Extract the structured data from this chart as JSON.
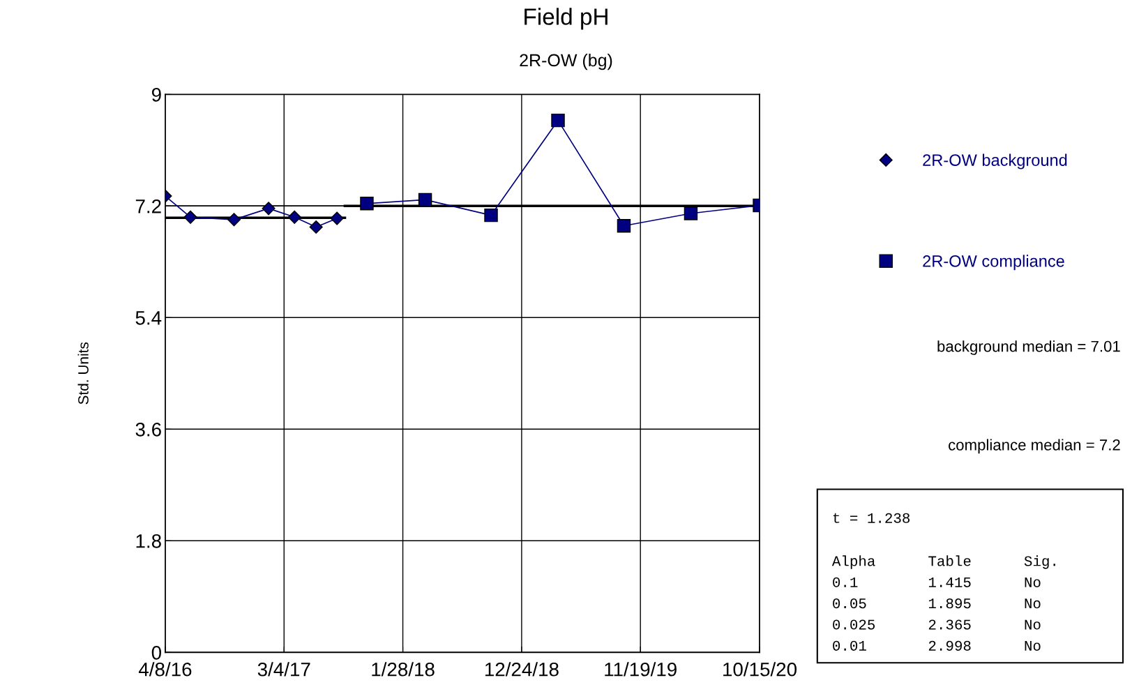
{
  "chart_data": {
    "type": "line",
    "title": "Field pH",
    "subtitle": "2R-OW (bg)",
    "ylabel": "Std. Units",
    "series": [
      {
        "name": "2R-OW background",
        "color": "#000080",
        "marker": "diamond",
        "x": [
          "2016-04-08",
          "2016-06-17",
          "2016-10-16",
          "2017-01-20",
          "2017-04-02",
          "2017-06-01",
          "2017-07-29"
        ],
        "values": [
          7.36,
          7.02,
          6.98,
          7.16,
          7.02,
          6.86,
          7.0
        ]
      },
      {
        "name": "2R-OW compliance",
        "color": "#000080",
        "marker": "square",
        "x": [
          "2017-10-20",
          "2018-03-31",
          "2018-09-30",
          "2019-04-04",
          "2019-10-04",
          "2020-04-07",
          "2020-10-15"
        ],
        "values": [
          7.24,
          7.3,
          7.05,
          8.58,
          6.88,
          7.08,
          7.21
        ]
      },
      {
        "color": "#000000",
        "marker": "none",
        "x": [
          "2016-04-08",
          "2017-08-20"
        ],
        "values": [
          7.01,
          7.01
        ]
      },
      {
        "color": "#000000",
        "marker": "none",
        "x": [
          "2017-08-20",
          "2020-10-15"
        ],
        "values": [
          7.2,
          7.2
        ]
      }
    ],
    "ref_lines": [
      {
        "axis": "y",
        "value": 7.2,
        "color": "#000000"
      }
    ],
    "xlim": [
      "2016-04-08",
      "2020-10-15"
    ],
    "xticks": [
      {
        "value": "2016-04-08",
        "label": "4/8/16"
      },
      {
        "value": "2017-03-04",
        "label": "3/4/17"
      },
      {
        "value": "2018-01-28",
        "label": "1/28/18"
      },
      {
        "value": "2018-12-24",
        "label": "12/24/18"
      },
      {
        "value": "2019-11-19",
        "label": "11/19/19"
      },
      {
        "value": "2020-10-15",
        "label": "10/15/20"
      }
    ],
    "ylim": [
      0,
      9
    ],
    "yticks": [
      0,
      1.8,
      3.6,
      5.4,
      7.2,
      9
    ],
    "grid": true,
    "legend": "right",
    "annotations": [
      "background median = 7.01",
      "compliance median = 7.2",
      "t = 1.238",
      "Alpha      Table      Sig.",
      "0.1        1.415      No",
      "0.05       1.895      No",
      "0.025      2.365      No",
      "0.01       2.998      No"
    ]
  }
}
